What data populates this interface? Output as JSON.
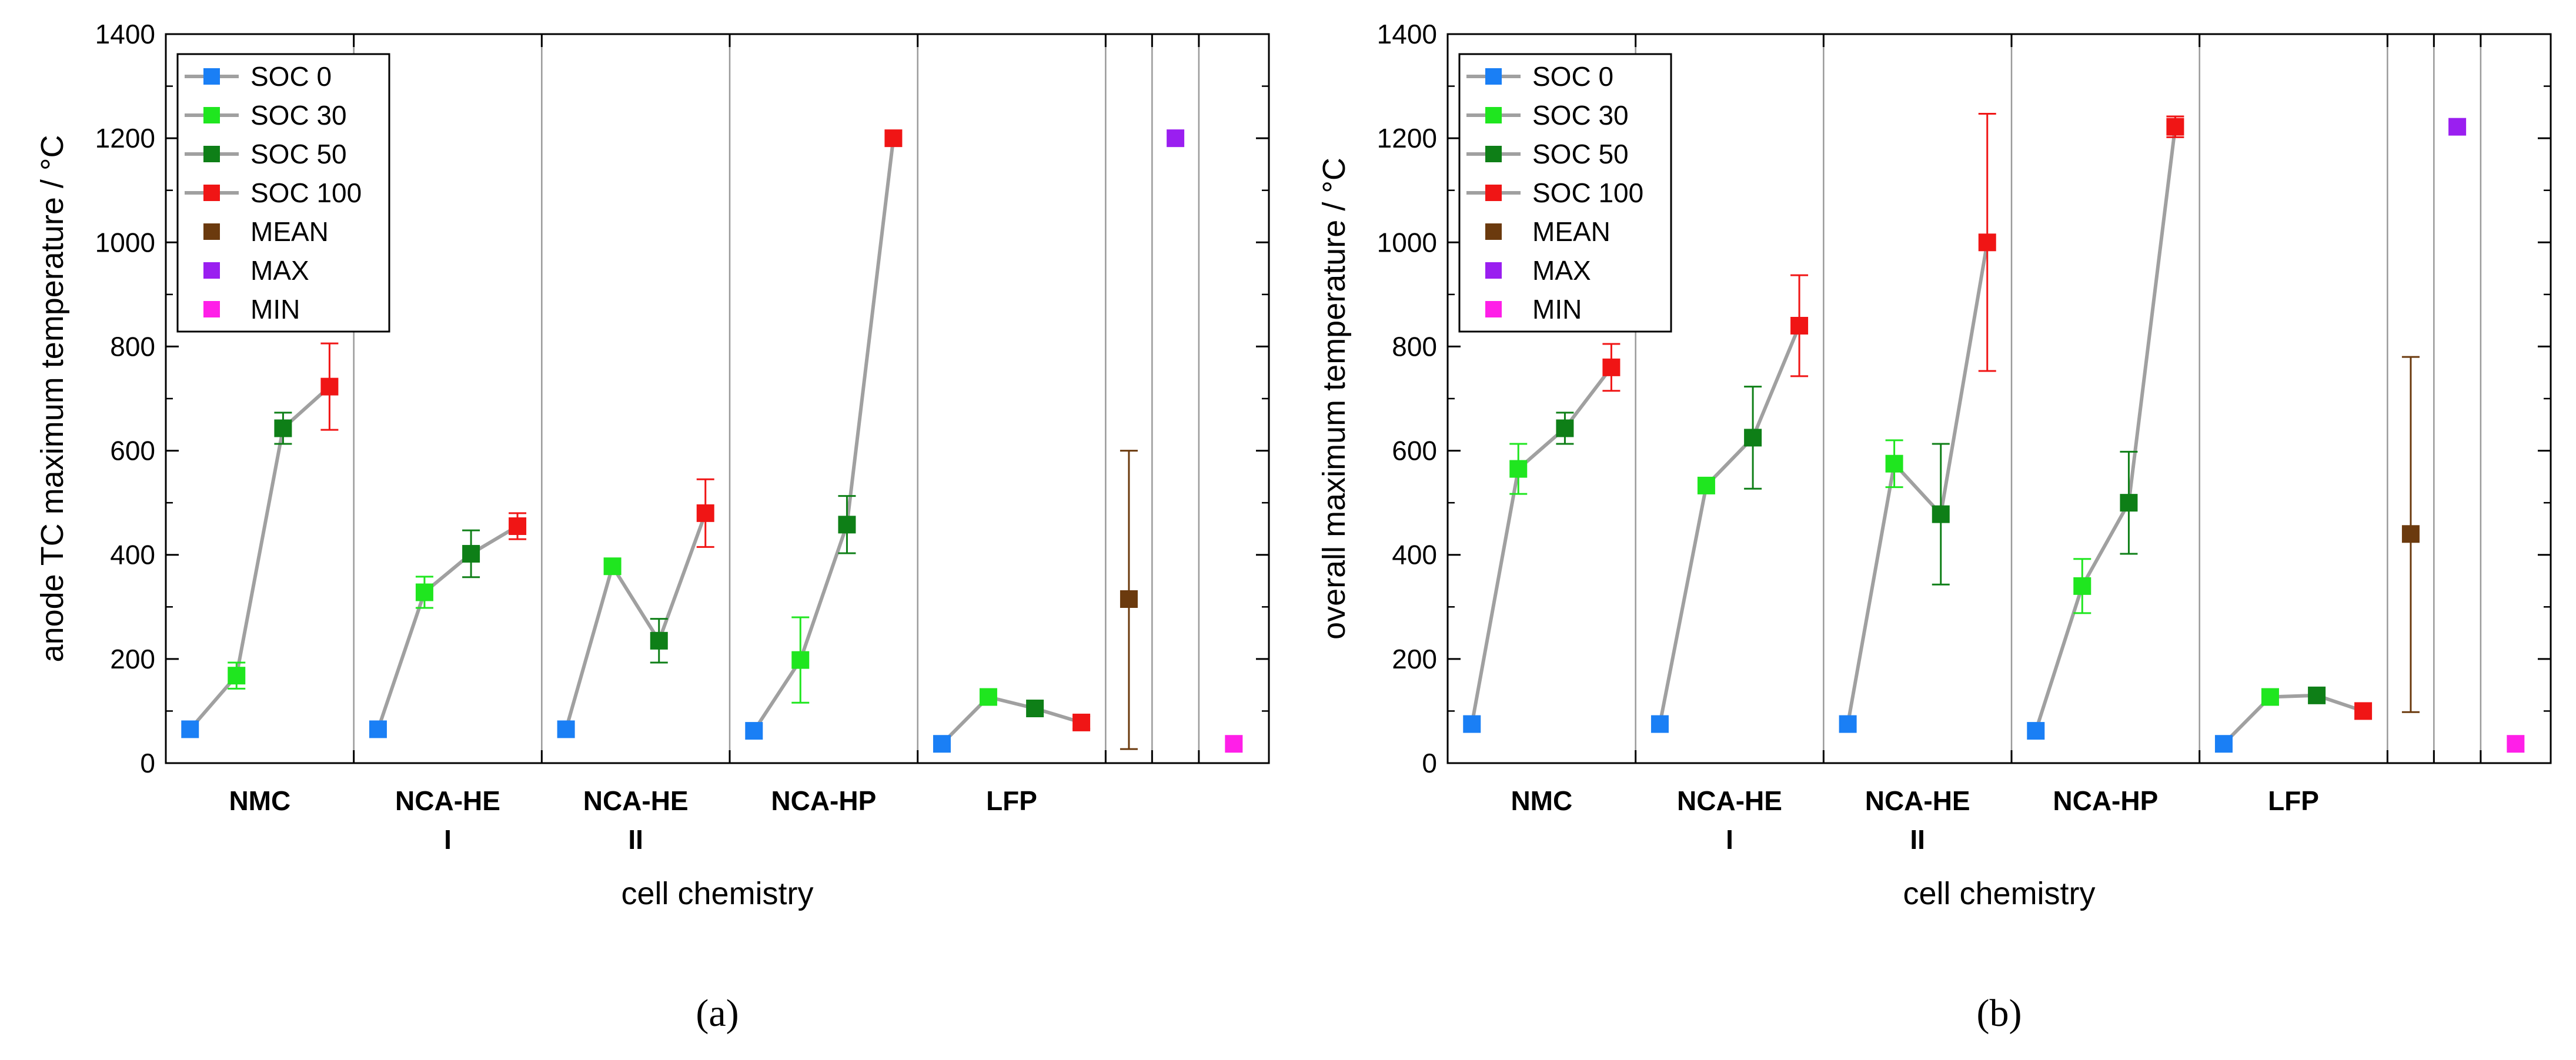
{
  "chart_data": [
    {
      "type": "scatter",
      "panel_label": "(a)",
      "ylabel": "anode TC maximum temperature / °C",
      "xlabel": "cell chemistry",
      "ylim": [
        0,
        1400
      ],
      "yticks": [
        0,
        200,
        400,
        600,
        800,
        1000,
        1200,
        1400
      ],
      "grid": false,
      "legend_position": "top-left",
      "categories": [
        [
          "NMC"
        ],
        [
          "NCA-HE",
          "I"
        ],
        [
          "NCA-HE",
          "II"
        ],
        [
          "NCA-HP"
        ],
        [
          "LFP"
        ]
      ],
      "series": [
        {
          "name": "SOC 0",
          "color": "#1a7ff5",
          "values": [
            65,
            65,
            65,
            62,
            37
          ],
          "err": [
            0,
            0,
            0,
            0,
            0
          ]
        },
        {
          "name": "SOC 30",
          "color": "#1fe61f",
          "values": [
            168,
            328,
            378,
            198,
            127
          ],
          "err": [
            25,
            30,
            0,
            82,
            0
          ]
        },
        {
          "name": "SOC 50",
          "color": "#0e7f17",
          "values": [
            643,
            402,
            235,
            458,
            105
          ],
          "err": [
            30,
            45,
            42,
            55,
            0
          ]
        },
        {
          "name": "SOC 100",
          "color": "#f01515",
          "values": [
            723,
            455,
            480,
            1200,
            78
          ],
          "err": [
            83,
            25,
            65,
            0,
            12
          ]
        }
      ],
      "summary": [
        {
          "name": "MEAN",
          "color": "#6b3a0e",
          "value": 315,
          "err_low": 288,
          "err_high": 285
        },
        {
          "name": "MAX",
          "color": "#9a1ff0",
          "value": 1200,
          "err_low": 0,
          "err_high": 0
        },
        {
          "name": "MIN",
          "color": "#ff1fe8",
          "value": 37,
          "err_low": 0,
          "err_high": 0
        }
      ]
    },
    {
      "type": "scatter",
      "panel_label": "(b)",
      "ylabel": "overall maximum temperature / °C",
      "xlabel": "cell chemistry",
      "ylim": [
        0,
        1400
      ],
      "yticks": [
        0,
        200,
        400,
        600,
        800,
        1000,
        1200,
        1400
      ],
      "grid": false,
      "legend_position": "top-left",
      "categories": [
        [
          "NMC"
        ],
        [
          "NCA-HE",
          "I"
        ],
        [
          "NCA-HE",
          "II"
        ],
        [
          "NCA-HP"
        ],
        [
          "LFP"
        ]
      ],
      "series": [
        {
          "name": "SOC 0",
          "color": "#1a7ff5",
          "values": [
            75,
            75,
            75,
            62,
            37
          ],
          "err": [
            0,
            0,
            0,
            0,
            0
          ]
        },
        {
          "name": "SOC 30",
          "color": "#1fe61f",
          "values": [
            565,
            533,
            575,
            340,
            127
          ],
          "err": [
            48,
            0,
            45,
            52,
            0
          ]
        },
        {
          "name": "SOC 50",
          "color": "#0e7f17",
          "values": [
            643,
            625,
            478,
            500,
            130
          ],
          "err": [
            30,
            98,
            135,
            98,
            0
          ]
        },
        {
          "name": "SOC 100",
          "color": "#f01515",
          "values": [
            760,
            840,
            1000,
            1222,
            100
          ],
          "err": [
            45,
            97,
            247,
            20,
            0
          ]
        }
      ],
      "summary": [
        {
          "name": "MEAN",
          "color": "#6b3a0e",
          "value": 440,
          "err_low": 342,
          "err_high": 340
        },
        {
          "name": "MAX",
          "color": "#9a1ff0",
          "value": 1222,
          "err_low": 0,
          "err_high": 0
        },
        {
          "name": "MIN",
          "color": "#ff1fe8",
          "value": 37,
          "err_low": 0,
          "err_high": 0
        }
      ]
    }
  ]
}
